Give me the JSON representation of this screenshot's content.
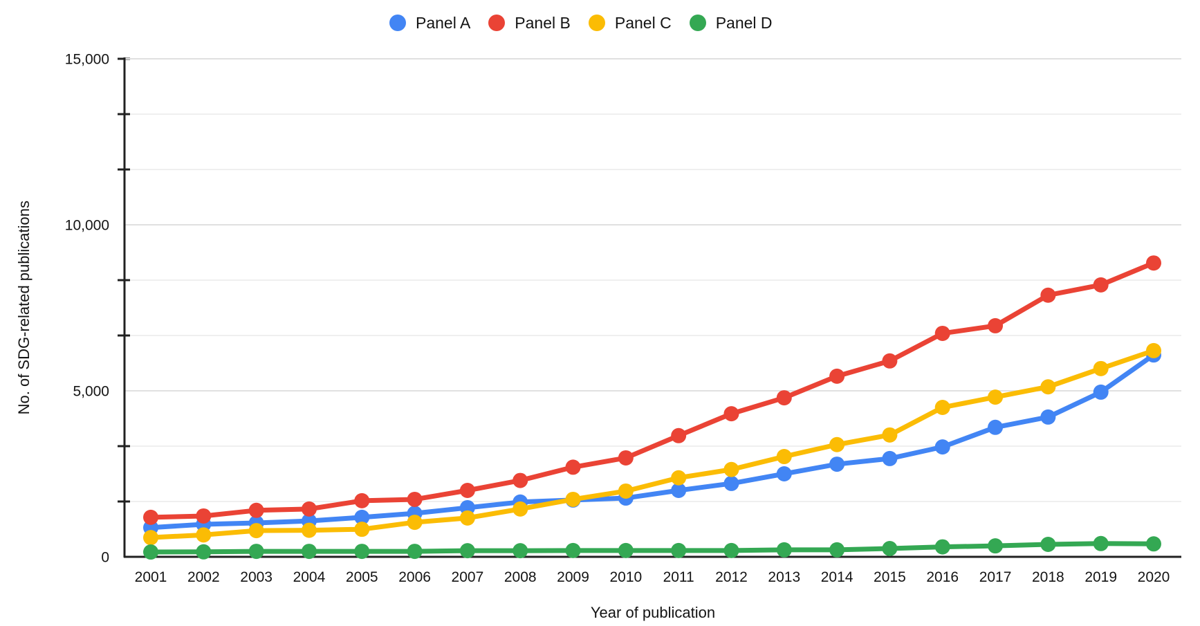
{
  "colors": {
    "background": "#ffffff",
    "axis": "#212121",
    "text": "#141414",
    "major_grid": "#e0e0e0",
    "minor_grid": "#efefef"
  },
  "chart_data": {
    "type": "line",
    "title": "",
    "xlabel": "Year of publication",
    "ylabel": "No. of SDG-related publications",
    "x": [
      "2001",
      "2002",
      "2003",
      "2004",
      "2005",
      "2006",
      "2007",
      "2008",
      "2009",
      "2010",
      "2011",
      "2012",
      "2013",
      "2014",
      "2015",
      "2016",
      "2017",
      "2018",
      "2019",
      "2020"
    ],
    "ylim": [
      0,
      15000
    ],
    "yticks": [
      0,
      5000,
      10000,
      15000
    ],
    "ytick_labels": [
      "0",
      "5,000",
      "10,000",
      "15,000"
    ],
    "minor_grid_step": 1666.67,
    "grid": true,
    "legend_position": "top",
    "series": [
      {
        "name": "Panel A",
        "color": "#4285F4",
        "values": [
          880,
          980,
          1020,
          1080,
          1190,
          1310,
          1480,
          1650,
          1710,
          1770,
          2000,
          2210,
          2500,
          2790,
          2960,
          3310,
          3900,
          4210,
          4960,
          6080
        ]
      },
      {
        "name": "Panel B",
        "color": "#EA4335",
        "values": [
          1190,
          1230,
          1400,
          1440,
          1690,
          1730,
          2000,
          2300,
          2700,
          2980,
          3650,
          4310,
          4790,
          5440,
          5900,
          6730,
          6960,
          7880,
          8190,
          8850
        ]
      },
      {
        "name": "Panel C",
        "color": "#FBBC04",
        "values": [
          580,
          660,
          790,
          800,
          830,
          1040,
          1170,
          1440,
          1730,
          1980,
          2380,
          2630,
          3020,
          3380,
          3670,
          4500,
          4810,
          5120,
          5670,
          6210
        ]
      },
      {
        "name": "Panel D",
        "color": "#34A853",
        "values": [
          145,
          150,
          165,
          165,
          165,
          165,
          185,
          185,
          190,
          190,
          190,
          190,
          210,
          210,
          250,
          300,
          330,
          375,
          400,
          390
        ]
      }
    ]
  }
}
